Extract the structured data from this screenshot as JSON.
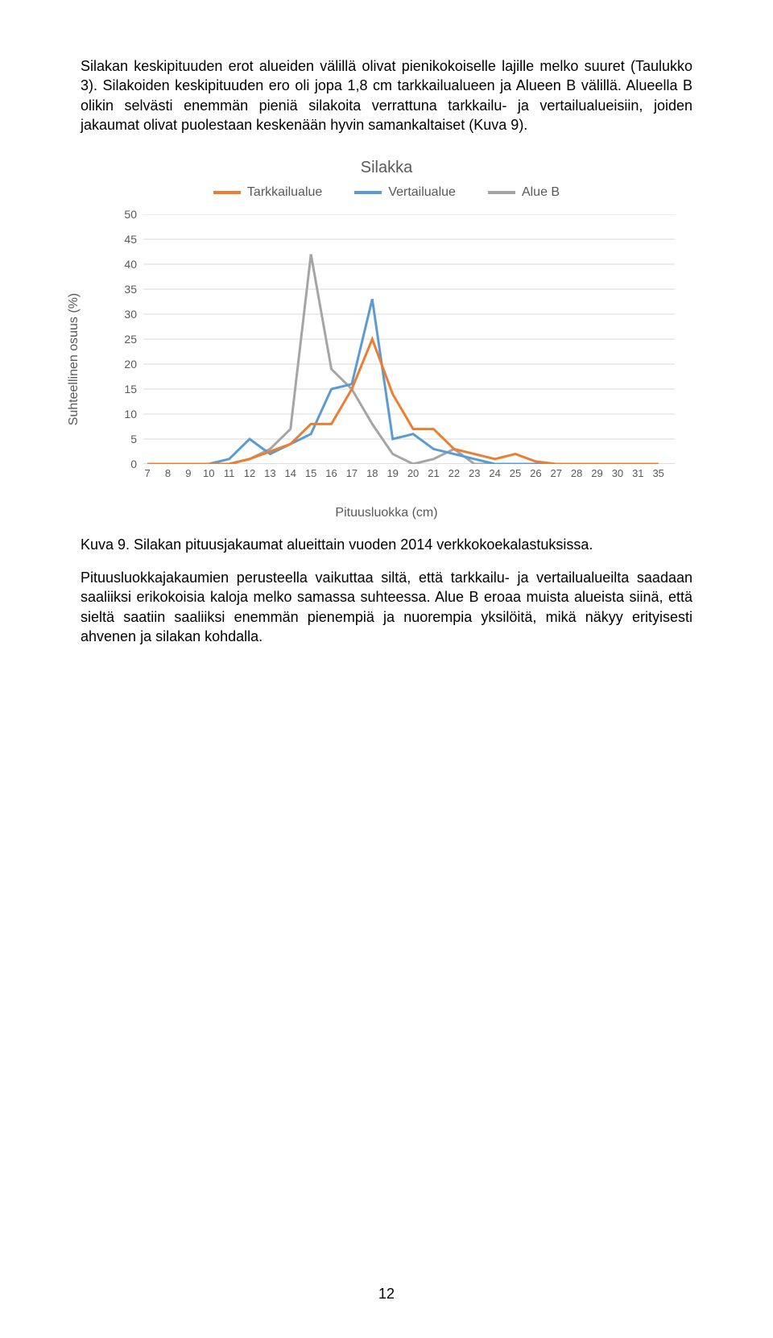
{
  "paragraphs": {
    "p1": "Silakan keskipituuden erot alueiden välillä olivat pienikokoiselle lajille melko suuret (Taulukko 3). Silakoiden keskipituuden ero oli jopa 1,8 cm tarkkailualueen ja Alueen B välillä. Alueella B olikin selvästi enemmän pieniä silakoita verrattuna tarkkailu- ja vertailualueisiin, joiden jakaumat olivat puolestaan keskenään hyvin samankaltaiset (Kuva 9).",
    "p2": "Pituusluokkajakaumien perusteella vaikuttaa siltä, että tarkkailu- ja vertailualueilta saadaan saaliiksi erikokoisia kaloja melko samassa suhteessa. Alue B eroaa muista alueista siinä, että sieltä saatiin saaliiksi enemmän pienempiä ja nuorempia yksilöitä, mikä näkyy erityisesti ahvenen ja silakan kohdalla."
  },
  "caption": "Kuva 9. Silakan pituusjakaumat alueittain vuoden 2014 verkkokoekalastuksissa.",
  "page_number": "12",
  "chart": {
    "type": "line",
    "title": "Silakka",
    "ylabel": "Suhteellinen osuus (%)",
    "xlabel": "Pituusluokka (cm)",
    "ylim": [
      0,
      50
    ],
    "ytick_step": 5,
    "categories": [
      "7",
      "8",
      "9",
      "10",
      "11",
      "12",
      "13",
      "14",
      "15",
      "16",
      "17",
      "18",
      "19",
      "20",
      "21",
      "22",
      "23",
      "24",
      "25",
      "26",
      "27",
      "28",
      "29",
      "30",
      "31",
      "35"
    ],
    "legend": [
      {
        "name": "Tarkkailualue",
        "color": "#ed7d31"
      },
      {
        "name": "Vertailualue",
        "color": "#5b9bd5"
      },
      {
        "name": "Alue B",
        "color": "#a5a5a5"
      }
    ],
    "series": {
      "Tarkkailualue": [
        0,
        0,
        0,
        0,
        0,
        1,
        2.5,
        4,
        8,
        8,
        15,
        25,
        14,
        7,
        7,
        3,
        2,
        1,
        2,
        0.5,
        0,
        0,
        0,
        0,
        0,
        0
      ],
      "Vertailualue": [
        0,
        0,
        0,
        0,
        1,
        5,
        2,
        4,
        6,
        15,
        16,
        33,
        5,
        6,
        3,
        2,
        1,
        0,
        0,
        0,
        0,
        0,
        0,
        0,
        0,
        0
      ],
      "Alue B": [
        0,
        0,
        0,
        0,
        0,
        1,
        3,
        7,
        42,
        19,
        15,
        8,
        2,
        0,
        1,
        3,
        0,
        0,
        0,
        0,
        0,
        0,
        0,
        0,
        0,
        0
      ]
    },
    "background_color": "#ffffff",
    "grid_color": "#d9d9d9",
    "axis_color": "#bfbfbf",
    "line_width": 3,
    "title_fontsize": 20,
    "label_fontsize": 16,
    "tick_fontsize": 14,
    "text_color": "#595959"
  }
}
